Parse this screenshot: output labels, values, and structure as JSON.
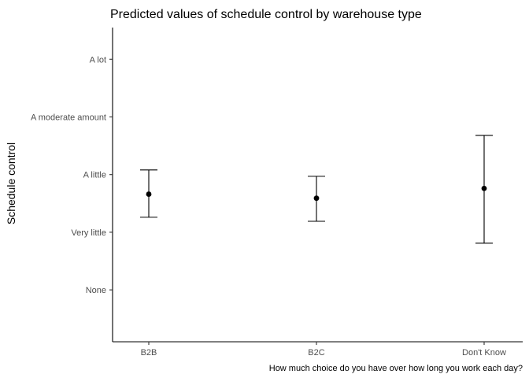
{
  "chart_data": {
    "type": "scatter",
    "title": "Predicted values of schedule control by warehouse type",
    "xlabel": "How much choice do you have over how long you work each day?",
    "ylabel": "Schedule control",
    "categories": [
      "B2B",
      "B2C",
      "Don't Know"
    ],
    "y_tick_labels": [
      "None",
      "Very little",
      "A little",
      "A moderate amount",
      "A lot"
    ],
    "y_tick_values": [
      1,
      2,
      3,
      4,
      5
    ],
    "ylim": [
      0.1,
      5.55
    ],
    "series": [
      {
        "values": [
          2.66,
          2.59,
          2.76
        ],
        "lower": [
          2.26,
          2.19,
          1.81
        ],
        "upper": [
          3.08,
          2.97,
          3.68
        ]
      }
    ],
    "grid": false,
    "errorbars": true
  }
}
